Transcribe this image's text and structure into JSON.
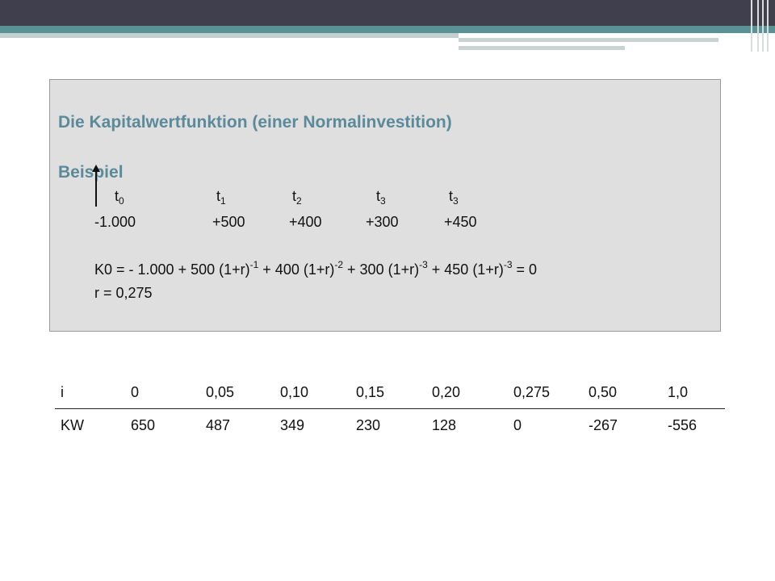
{
  "slide": {
    "title": "Die Kapitalwertfunktion (einer Normalinvestition)",
    "subtitle": "Beispiel"
  },
  "periods": [
    {
      "base": "t",
      "sub": "0"
    },
    {
      "base": "t",
      "sub": "1"
    },
    {
      "base": "t",
      "sub": "2"
    },
    {
      "base": "t",
      "sub": "3"
    },
    {
      "base": "t",
      "sub": "3"
    }
  ],
  "cashflows": [
    "-1.000",
    "+500",
    "+400",
    "+300",
    "+450"
  ],
  "equation": {
    "parts": [
      "K0 = - 1.000 + 500 (1+r)",
      "-1",
      " + 400 (1+r)",
      "-2",
      " + 300 (1+r)",
      "-3",
      " + 450 (1+r)",
      "-3",
      " = 0"
    ],
    "result": "r = 0,275"
  },
  "table": {
    "header": [
      "i",
      "0",
      "0,05",
      "0,10",
      "0,15",
      "0,20",
      "0,275",
      "0,50",
      "1,0"
    ],
    "row": [
      "KW",
      "650",
      "487",
      "349",
      "230",
      "128",
      "0",
      "-267",
      "-556"
    ]
  },
  "colors": {
    "heading": "#5b8a9a",
    "banner_dark": "#3f3f4e",
    "banner_teal": "#5a9194",
    "box_bg": "#dfdfdf"
  }
}
